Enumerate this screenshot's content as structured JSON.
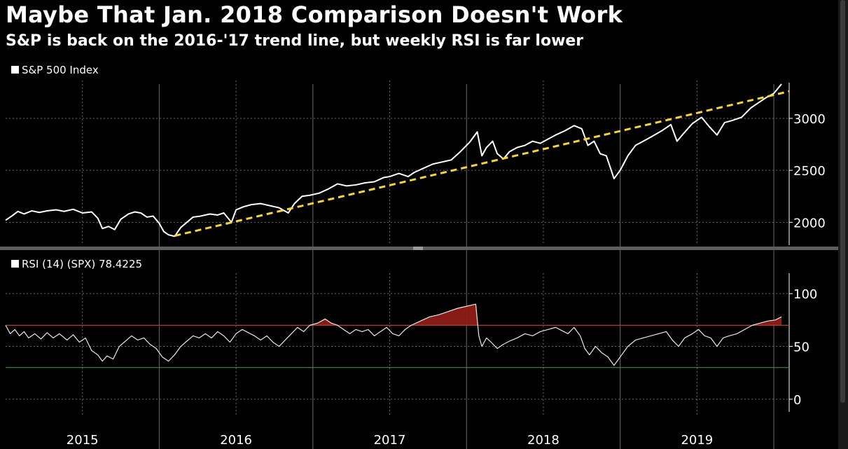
{
  "title": "Maybe That Jan. 2018 Comparison Doesn't Work",
  "subtitle": "S&P is back on the 2016-'17 trend line, but weekly RSI is far lower",
  "colors": {
    "background": "#000000",
    "line": "#ffffff",
    "trend": "#f5d33c",
    "overbought": "#c0392b",
    "oversold": "#3f8a3f",
    "fill_over": "#8e1c17",
    "grid": "#6a6a6a"
  },
  "x_axis": {
    "years": [
      "2015",
      "2016",
      "2017",
      "2018",
      "2019"
    ],
    "range": [
      2015.0,
      2020.1
    ]
  },
  "chart_data": [
    {
      "type": "line",
      "legend": "S&P 500 Index",
      "legend_position": "top-left",
      "grid": true,
      "ylim": [
        1780,
        3330
      ],
      "yticks": [
        "2000",
        "2500",
        "3000"
      ],
      "series": [
        {
          "name": "S&P 500 Index",
          "points": [
            [
              2015.0,
              2020
            ],
            [
              2015.04,
              2060
            ],
            [
              2015.08,
              2105
            ],
            [
              2015.12,
              2080
            ],
            [
              2015.17,
              2110
            ],
            [
              2015.22,
              2095
            ],
            [
              2015.27,
              2110
            ],
            [
              2015.33,
              2120
            ],
            [
              2015.38,
              2105
            ],
            [
              2015.44,
              2125
            ],
            [
              2015.5,
              2090
            ],
            [
              2015.56,
              2100
            ],
            [
              2015.6,
              2040
            ],
            [
              2015.63,
              1940
            ],
            [
              2015.67,
              1960
            ],
            [
              2015.71,
              1930
            ],
            [
              2015.75,
              2030
            ],
            [
              2015.8,
              2080
            ],
            [
              2015.84,
              2100
            ],
            [
              2015.88,
              2090
            ],
            [
              2015.92,
              2050
            ],
            [
              2015.96,
              2060
            ],
            [
              2016.0,
              1990
            ],
            [
              2016.03,
              1910
            ],
            [
              2016.06,
              1880
            ],
            [
              2016.1,
              1865
            ],
            [
              2016.14,
              1950
            ],
            [
              2016.18,
              2000
            ],
            [
              2016.22,
              2050
            ],
            [
              2016.27,
              2060
            ],
            [
              2016.33,
              2080
            ],
            [
              2016.38,
              2070
            ],
            [
              2016.42,
              2090
            ],
            [
              2016.47,
              2000
            ],
            [
              2016.5,
              2120
            ],
            [
              2016.55,
              2150
            ],
            [
              2016.6,
              2170
            ],
            [
              2016.66,
              2180
            ],
            [
              2016.72,
              2160
            ],
            [
              2016.78,
              2140
            ],
            [
              2016.84,
              2090
            ],
            [
              2016.88,
              2180
            ],
            [
              2016.93,
              2250
            ],
            [
              2016.98,
              2260
            ],
            [
              2017.04,
              2280
            ],
            [
              2017.1,
              2320
            ],
            [
              2017.16,
              2370
            ],
            [
              2017.22,
              2350
            ],
            [
              2017.28,
              2360
            ],
            [
              2017.34,
              2380
            ],
            [
              2017.4,
              2390
            ],
            [
              2017.46,
              2430
            ],
            [
              2017.5,
              2440
            ],
            [
              2017.56,
              2470
            ],
            [
              2017.62,
              2440
            ],
            [
              2017.66,
              2480
            ],
            [
              2017.72,
              2520
            ],
            [
              2017.78,
              2560
            ],
            [
              2017.84,
              2580
            ],
            [
              2017.9,
              2600
            ],
            [
              2017.96,
              2680
            ],
            [
              2018.02,
              2770
            ],
            [
              2018.07,
              2870
            ],
            [
              2018.1,
              2640
            ],
            [
              2018.13,
              2720
            ],
            [
              2018.17,
              2780
            ],
            [
              2018.2,
              2660
            ],
            [
              2018.24,
              2610
            ],
            [
              2018.28,
              2680
            ],
            [
              2018.33,
              2720
            ],
            [
              2018.38,
              2740
            ],
            [
              2018.43,
              2780
            ],
            [
              2018.48,
              2760
            ],
            [
              2018.53,
              2800
            ],
            [
              2018.58,
              2840
            ],
            [
              2018.64,
              2880
            ],
            [
              2018.7,
              2930
            ],
            [
              2018.75,
              2900
            ],
            [
              2018.79,
              2740
            ],
            [
              2018.83,
              2780
            ],
            [
              2018.87,
              2660
            ],
            [
              2018.91,
              2640
            ],
            [
              2018.96,
              2420
            ],
            [
              2019.0,
              2500
            ],
            [
              2019.05,
              2640
            ],
            [
              2019.1,
              2740
            ],
            [
              2019.15,
              2780
            ],
            [
              2019.2,
              2820
            ],
            [
              2019.27,
              2880
            ],
            [
              2019.33,
              2940
            ],
            [
              2019.37,
              2780
            ],
            [
              2019.41,
              2850
            ],
            [
              2019.47,
              2950
            ],
            [
              2019.53,
              3010
            ],
            [
              2019.58,
              2920
            ],
            [
              2019.63,
              2840
            ],
            [
              2019.68,
              2960
            ],
            [
              2019.73,
              2980
            ],
            [
              2019.79,
              3010
            ],
            [
              2019.85,
              3100
            ],
            [
              2019.9,
              3150
            ],
            [
              2019.95,
              3200
            ],
            [
              2020.0,
              3240
            ],
            [
              2020.05,
              3330
            ]
          ]
        },
        {
          "name": "Trend line",
          "style": "dashed",
          "points": [
            [
              2016.1,
              1870
            ],
            [
              2020.1,
              3260
            ]
          ]
        }
      ]
    },
    {
      "type": "line",
      "legend": "RSI (14) (SPX) 78.4225",
      "legend_position": "top-left",
      "grid": true,
      "ylim": [
        -12,
        118
      ],
      "yticks": [
        "0",
        "50",
        "100"
      ],
      "levels": {
        "overbought": 70,
        "oversold": 30
      },
      "series": [
        {
          "name": "RSI (14) (SPX)",
          "points": [
            [
              2015.0,
              70
            ],
            [
              2015.03,
              62
            ],
            [
              2015.06,
              66
            ],
            [
              2015.09,
              60
            ],
            [
              2015.12,
              64
            ],
            [
              2015.15,
              58
            ],
            [
              2015.19,
              62
            ],
            [
              2015.23,
              57
            ],
            [
              2015.27,
              63
            ],
            [
              2015.31,
              58
            ],
            [
              2015.35,
              62
            ],
            [
              2015.4,
              56
            ],
            [
              2015.44,
              61
            ],
            [
              2015.48,
              54
            ],
            [
              2015.52,
              58
            ],
            [
              2015.56,
              46
            ],
            [
              2015.6,
              42
            ],
            [
              2015.63,
              36
            ],
            [
              2015.66,
              41
            ],
            [
              2015.7,
              38
            ],
            [
              2015.74,
              50
            ],
            [
              2015.78,
              55
            ],
            [
              2015.82,
              60
            ],
            [
              2015.86,
              56
            ],
            [
              2015.9,
              58
            ],
            [
              2015.94,
              52
            ],
            [
              2015.98,
              48
            ],
            [
              2016.02,
              40
            ],
            [
              2016.06,
              36
            ],
            [
              2016.1,
              42
            ],
            [
              2016.14,
              50
            ],
            [
              2016.18,
              55
            ],
            [
              2016.22,
              60
            ],
            [
              2016.26,
              58
            ],
            [
              2016.3,
              62
            ],
            [
              2016.34,
              58
            ],
            [
              2016.38,
              64
            ],
            [
              2016.42,
              60
            ],
            [
              2016.46,
              54
            ],
            [
              2016.5,
              62
            ],
            [
              2016.54,
              66
            ],
            [
              2016.58,
              63
            ],
            [
              2016.62,
              60
            ],
            [
              2016.66,
              56
            ],
            [
              2016.7,
              60
            ],
            [
              2016.74,
              54
            ],
            [
              2016.78,
              50
            ],
            [
              2016.82,
              56
            ],
            [
              2016.86,
              62
            ],
            [
              2016.9,
              68
            ],
            [
              2016.94,
              64
            ],
            [
              2016.98,
              70
            ],
            [
              2017.03,
              72
            ],
            [
              2017.08,
              76
            ],
            [
              2017.12,
              72
            ],
            [
              2017.16,
              70
            ],
            [
              2017.2,
              66
            ],
            [
              2017.24,
              62
            ],
            [
              2017.28,
              66
            ],
            [
              2017.32,
              64
            ],
            [
              2017.36,
              66
            ],
            [
              2017.4,
              60
            ],
            [
              2017.44,
              64
            ],
            [
              2017.48,
              68
            ],
            [
              2017.52,
              62
            ],
            [
              2017.56,
              60
            ],
            [
              2017.6,
              66
            ],
            [
              2017.64,
              70
            ],
            [
              2017.7,
              74
            ],
            [
              2017.76,
              78
            ],
            [
              2017.82,
              80
            ],
            [
              2017.88,
              83
            ],
            [
              2017.94,
              86
            ],
            [
              2018.0,
              88
            ],
            [
              2018.06,
              90
            ],
            [
              2018.08,
              60
            ],
            [
              2018.1,
              50
            ],
            [
              2018.13,
              58
            ],
            [
              2018.16,
              54
            ],
            [
              2018.2,
              48
            ],
            [
              2018.24,
              52
            ],
            [
              2018.28,
              55
            ],
            [
              2018.33,
              58
            ],
            [
              2018.38,
              62
            ],
            [
              2018.43,
              60
            ],
            [
              2018.48,
              64
            ],
            [
              2018.53,
              66
            ],
            [
              2018.58,
              68
            ],
            [
              2018.62,
              65
            ],
            [
              2018.66,
              62
            ],
            [
              2018.7,
              68
            ],
            [
              2018.74,
              60
            ],
            [
              2018.77,
              48
            ],
            [
              2018.8,
              42
            ],
            [
              2018.84,
              50
            ],
            [
              2018.88,
              44
            ],
            [
              2018.92,
              40
            ],
            [
              2018.96,
              32
            ],
            [
              2019.0,
              40
            ],
            [
              2019.05,
              50
            ],
            [
              2019.1,
              56
            ],
            [
              2019.15,
              58
            ],
            [
              2019.2,
              60
            ],
            [
              2019.25,
              62
            ],
            [
              2019.3,
              64
            ],
            [
              2019.34,
              56
            ],
            [
              2019.38,
              50
            ],
            [
              2019.42,
              58
            ],
            [
              2019.47,
              62
            ],
            [
              2019.51,
              66
            ],
            [
              2019.55,
              60
            ],
            [
              2019.59,
              58
            ],
            [
              2019.63,
              50
            ],
            [
              2019.67,
              58
            ],
            [
              2019.71,
              60
            ],
            [
              2019.76,
              62
            ],
            [
              2019.81,
              66
            ],
            [
              2019.86,
              70
            ],
            [
              2019.91,
              72
            ],
            [
              2019.96,
              74
            ],
            [
              2020.01,
              75
            ],
            [
              2020.05,
              78
            ]
          ]
        }
      ]
    }
  ]
}
